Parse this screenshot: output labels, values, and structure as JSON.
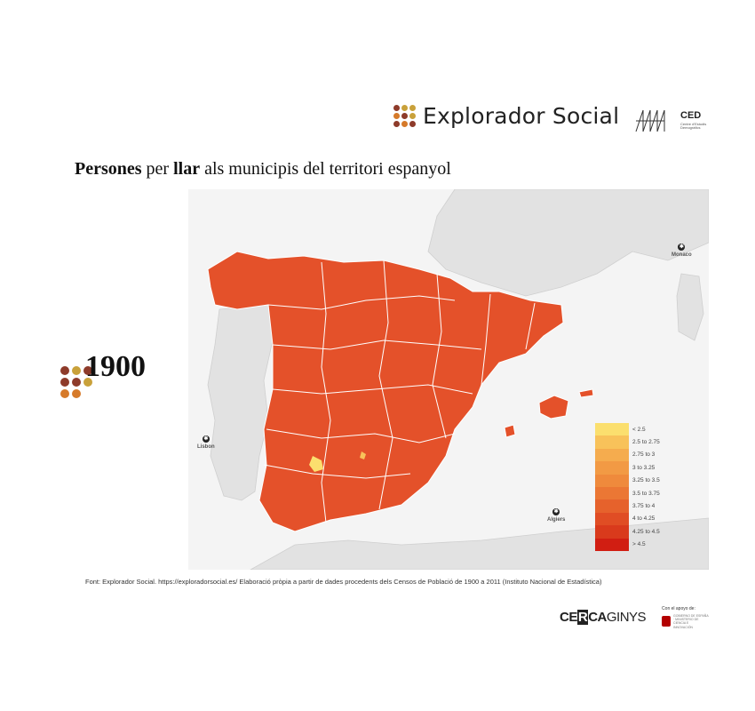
{
  "header": {
    "brand_name": "Explorador Social",
    "brand_dot_colors": [
      "#8e3b2a",
      "#c9a13a",
      "#c9a13a",
      "#d67a2a",
      "#8e3b2a",
      "#c9a13a",
      "#8e3b2a",
      "#d67a2a",
      "#8e3b2a"
    ],
    "ced_name": "CED",
    "ced_sub": "Centre d'Estudis Demogràfics"
  },
  "title": {
    "part1": "Persones",
    "part2": " per ",
    "part3": "llar",
    "part4": " als municipis del territori espanyol"
  },
  "year": "1900",
  "year_dot_colors": [
    "#8e3b2a",
    "#c9a13a",
    "#8e3b2a",
    "#8e3b2a",
    "#8e3b2a",
    "#c9a13a",
    "#d67a2a",
    "#d67a2a"
  ],
  "map": {
    "land_color": "#e2e2e2",
    "sea_color": "#f4f4f4",
    "fill_color": "#e4512a",
    "border_color": "#ffffff",
    "cities": [
      {
        "name": "Monaco",
        "icon": "star-circle-icon"
      },
      {
        "name": "Lisbon",
        "icon": "star-circle-icon"
      },
      {
        "name": "Algiers",
        "icon": "star-circle-icon"
      }
    ]
  },
  "legend": [
    {
      "label": "< 2.5",
      "color": "#fbdf6e"
    },
    {
      "label": "2.5 to 2.75",
      "color": "#f8c25a"
    },
    {
      "label": "2.75 to 3",
      "color": "#f5ac4e"
    },
    {
      "label": "3 to 3.25",
      "color": "#f29a44"
    },
    {
      "label": "3.25 to 3.5",
      "color": "#ef8a3c"
    },
    {
      "label": "3.5 to 3.75",
      "color": "#eb7734"
    },
    {
      "label": "3.75 to 4",
      "color": "#e6622c"
    },
    {
      "label": "4 to 4.25",
      "color": "#e04d24"
    },
    {
      "label": "4.25 to 4.5",
      "color": "#d93a1c"
    },
    {
      "label": "> 4.5",
      "color": "#d11e12"
    }
  ],
  "source": "Font: Explorador  Social. https://exploradorsocial.es/  Elaboració  pròpia  a partir de dades procedents  dels Censos de Població  de 1900 a 2011 (Instituto Nacional de Estadística)",
  "footer": {
    "cerca_a": "CE",
    "cerca_b": "R",
    "cerca_c": "CA",
    "cerca_d": "GINYS",
    "support_label": "Con el apoyo de:",
    "seal_text": "GOBIERNO DE ESPAÑA · MINISTERIO DE CIENCIA E INNOVACIÓN"
  }
}
